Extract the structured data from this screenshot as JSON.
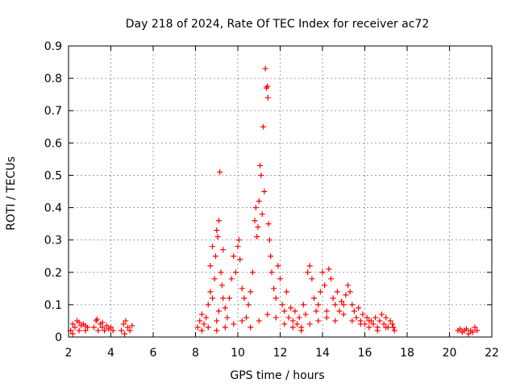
{
  "chart_data": {
    "type": "scatter",
    "title": "Day 218 of 2024, Rate Of TEC Index for receiver ac72",
    "xlabel": "GPS time / hours",
    "ylabel": "ROTI / TECUs",
    "xlim": [
      2,
      22
    ],
    "ylim": [
      0,
      0.9
    ],
    "xticks": [
      "2",
      "4",
      "6",
      "8",
      "10",
      "12",
      "14",
      "16",
      "18",
      "20",
      "22"
    ],
    "yticks": [
      "0",
      "0.1",
      "0.2",
      "0.3",
      "0.4",
      "0.5",
      "0.6",
      "0.7",
      "0.8",
      "0.9"
    ],
    "grid": true,
    "marker": "+",
    "color": "#ff0000",
    "series": [
      {
        "points": [
          [
            2.1,
            0.02
          ],
          [
            2.2,
            0.04
          ],
          [
            2.3,
            0.03
          ],
          [
            2.4,
            0.05
          ],
          [
            2.5,
            0.02
          ],
          [
            2.6,
            0.035
          ],
          [
            2.7,
            0.04
          ],
          [
            2.8,
            0.02
          ],
          [
            2.9,
            0.03
          ],
          [
            2.2,
            0.01
          ],
          [
            2.5,
            0.045
          ],
          [
            2.8,
            0.035
          ],
          [
            3.2,
            0.03
          ],
          [
            3.3,
            0.05
          ],
          [
            3.4,
            0.02
          ],
          [
            3.5,
            0.04
          ],
          [
            3.6,
            0.03
          ],
          [
            3.7,
            0.02
          ],
          [
            3.8,
            0.035
          ],
          [
            3.9,
            0.025
          ],
          [
            4.0,
            0.03
          ],
          [
            4.1,
            0.02
          ],
          [
            3.35,
            0.055
          ],
          [
            3.6,
            0.045
          ],
          [
            4.5,
            0.02
          ],
          [
            4.6,
            0.04
          ],
          [
            4.7,
            0.05
          ],
          [
            4.8,
            0.03
          ],
          [
            4.9,
            0.02
          ],
          [
            5.0,
            0.035
          ],
          [
            4.65,
            0.01
          ],
          [
            8.1,
            0.03
          ],
          [
            8.2,
            0.05
          ],
          [
            8.3,
            0.07
          ],
          [
            8.4,
            0.04
          ],
          [
            8.5,
            0.06
          ],
          [
            8.6,
            0.1
          ],
          [
            8.7,
            0.14
          ],
          [
            8.8,
            0.28
          ],
          [
            8.9,
            0.18
          ],
          [
            8.95,
            0.25
          ],
          [
            9.0,
            0.33
          ],
          [
            9.05,
            0.31
          ],
          [
            9.1,
            0.36
          ],
          [
            9.15,
            0.51
          ],
          [
            9.2,
            0.2
          ],
          [
            9.25,
            0.16
          ],
          [
            9.3,
            0.12
          ],
          [
            9.1,
            0.08
          ],
          [
            8.7,
            0.22
          ],
          [
            8.8,
            0.12
          ],
          [
            9.0,
            0.05
          ],
          [
            9.3,
            0.27
          ],
          [
            9.4,
            0.09
          ],
          [
            9.5,
            0.06
          ],
          [
            9.6,
            0.12
          ],
          [
            9.7,
            0.18
          ],
          [
            9.8,
            0.25
          ],
          [
            9.9,
            0.2
          ],
          [
            10.0,
            0.28
          ],
          [
            10.05,
            0.3
          ],
          [
            10.1,
            0.24
          ],
          [
            10.2,
            0.15
          ],
          [
            10.3,
            0.12
          ],
          [
            10.4,
            0.06
          ],
          [
            10.5,
            0.1
          ],
          [
            10.6,
            0.14
          ],
          [
            10.7,
            0.2
          ],
          [
            10.8,
            0.36
          ],
          [
            10.85,
            0.4
          ],
          [
            10.9,
            0.31
          ],
          [
            10.95,
            0.34
          ],
          [
            11.0,
            0.42
          ],
          [
            11.05,
            0.53
          ],
          [
            11.1,
            0.5
          ],
          [
            11.15,
            0.38
          ],
          [
            11.2,
            0.65
          ],
          [
            11.25,
            0.45
          ],
          [
            11.3,
            0.83
          ],
          [
            11.35,
            0.77
          ],
          [
            11.4,
            0.775
          ],
          [
            11.42,
            0.74
          ],
          [
            11.45,
            0.35
          ],
          [
            11.5,
            0.3
          ],
          [
            11.55,
            0.25
          ],
          [
            11.6,
            0.2
          ],
          [
            11.7,
            0.15
          ],
          [
            11.8,
            0.12
          ],
          [
            11.9,
            0.22
          ],
          [
            12.0,
            0.18
          ],
          [
            12.1,
            0.1
          ],
          [
            12.2,
            0.08
          ],
          [
            12.3,
            0.14
          ],
          [
            12.4,
            0.06
          ],
          [
            12.5,
            0.09
          ],
          [
            12.6,
            0.05
          ],
          [
            12.7,
            0.08
          ],
          [
            12.8,
            0.04
          ],
          [
            12.9,
            0.06
          ],
          [
            13.0,
            0.03
          ],
          [
            13.1,
            0.1
          ],
          [
            13.2,
            0.07
          ],
          [
            13.3,
            0.2
          ],
          [
            13.4,
            0.22
          ],
          [
            13.5,
            0.18
          ],
          [
            13.6,
            0.12
          ],
          [
            13.7,
            0.08
          ],
          [
            13.8,
            0.1
          ],
          [
            13.9,
            0.14
          ],
          [
            14.0,
            0.2
          ],
          [
            14.1,
            0.16
          ],
          [
            14.2,
            0.08
          ],
          [
            14.3,
            0.21
          ],
          [
            14.4,
            0.18
          ],
          [
            14.5,
            0.12
          ],
          [
            14.6,
            0.1
          ],
          [
            14.7,
            0.14
          ],
          [
            14.8,
            0.08
          ],
          [
            14.9,
            0.11
          ],
          [
            15.0,
            0.1
          ],
          [
            15.1,
            0.13
          ],
          [
            15.2,
            0.16
          ],
          [
            15.3,
            0.14
          ],
          [
            15.4,
            0.1
          ],
          [
            15.5,
            0.08
          ],
          [
            15.6,
            0.06
          ],
          [
            15.7,
            0.09
          ],
          [
            15.8,
            0.05
          ],
          [
            15.9,
            0.07
          ],
          [
            16.0,
            0.04
          ],
          [
            16.1,
            0.06
          ],
          [
            16.2,
            0.03
          ],
          [
            16.3,
            0.05
          ],
          [
            16.4,
            0.04
          ],
          [
            16.5,
            0.06
          ],
          [
            16.6,
            0.03
          ],
          [
            16.7,
            0.05
          ],
          [
            16.8,
            0.07
          ],
          [
            16.9,
            0.04
          ],
          [
            17.0,
            0.06
          ],
          [
            17.1,
            0.03
          ],
          [
            17.2,
            0.05
          ],
          [
            17.3,
            0.04
          ],
          [
            17.4,
            0.02
          ],
          [
            17.35,
            0.03
          ],
          [
            8.3,
            0.02
          ],
          [
            8.6,
            0.03
          ],
          [
            9.0,
            0.02
          ],
          [
            9.4,
            0.03
          ],
          [
            9.8,
            0.04
          ],
          [
            10.2,
            0.05
          ],
          [
            10.6,
            0.03
          ],
          [
            11.0,
            0.05
          ],
          [
            11.4,
            0.07
          ],
          [
            11.8,
            0.06
          ],
          [
            12.2,
            0.04
          ],
          [
            12.6,
            0.03
          ],
          [
            13.0,
            0.02
          ],
          [
            13.4,
            0.04
          ],
          [
            13.8,
            0.05
          ],
          [
            14.2,
            0.06
          ],
          [
            14.6,
            0.05
          ],
          [
            15.0,
            0.07
          ],
          [
            15.4,
            0.05
          ],
          [
            15.8,
            0.04
          ],
          [
            16.2,
            0.05
          ],
          [
            16.6,
            0.02
          ],
          [
            17.0,
            0.03
          ],
          [
            20.4,
            0.02
          ],
          [
            20.5,
            0.025
          ],
          [
            20.6,
            0.015
          ],
          [
            20.7,
            0.02
          ],
          [
            20.8,
            0.025
          ],
          [
            20.9,
            0.01
          ],
          [
            21.0,
            0.02
          ],
          [
            21.1,
            0.015
          ],
          [
            21.2,
            0.03
          ],
          [
            21.3,
            0.02
          ]
        ]
      }
    ]
  }
}
